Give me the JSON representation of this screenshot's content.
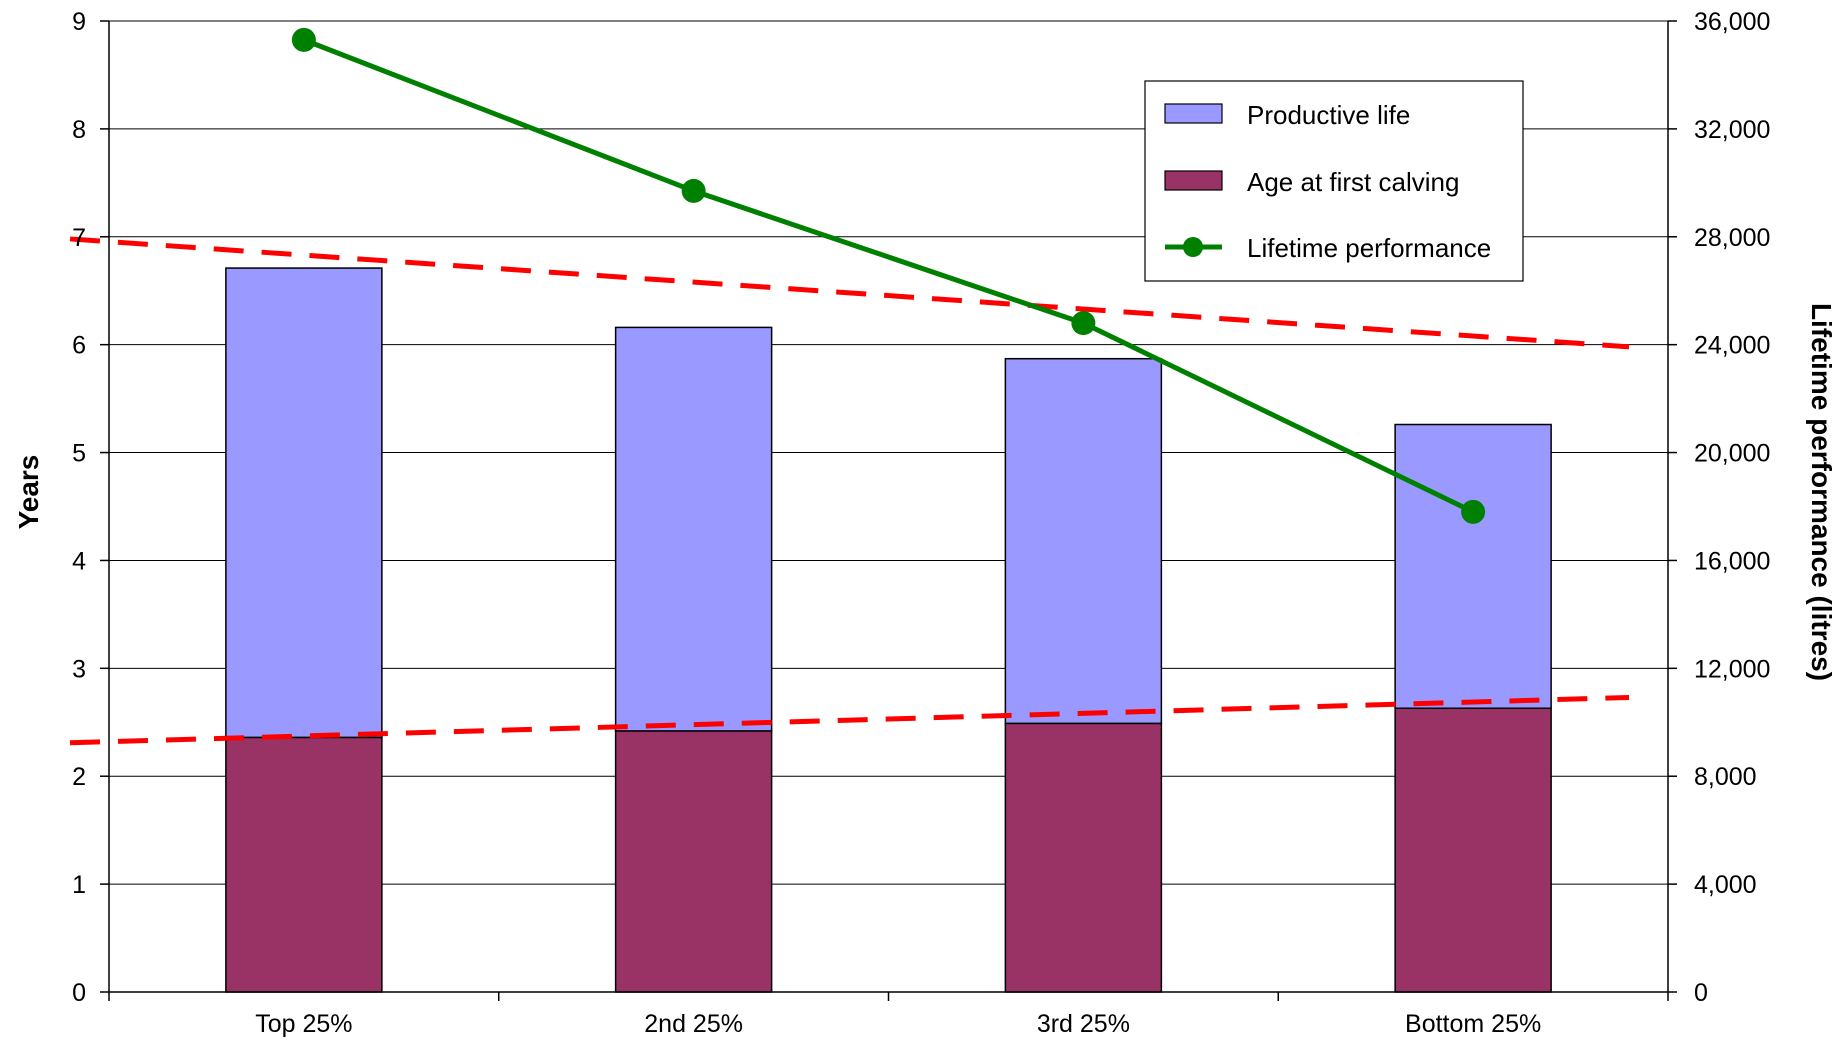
{
  "colors": {
    "productive_life": "#9999ff",
    "age_at_first_calving": "#993366",
    "lifetime_performance": "#008000",
    "trend": "#ff0000",
    "gridline": "#000000"
  },
  "chart_data": {
    "type": "bar",
    "stacked": true,
    "title": "",
    "categories": [
      "Top 25%",
      "2nd 25%",
      "3rd 25%",
      "Bottom 25%"
    ],
    "ylabel": "Years",
    "y2label": "Lifetime performance (litres)",
    "ylim": [
      0,
      9
    ],
    "y2lim": [
      0,
      36000
    ],
    "yticks": [
      "0",
      "1",
      "2",
      "3",
      "4",
      "5",
      "6",
      "7",
      "8",
      "9"
    ],
    "y2ticks": [
      "0",
      "4,000",
      "8,000",
      "12,000",
      "16,000",
      "20,000",
      "24,000",
      "28,000",
      "32,000",
      "36,000"
    ],
    "grid": true,
    "legend_position": "top-right",
    "series": [
      {
        "name": "Age at first calving",
        "type": "bar",
        "axis": "left",
        "values": [
          2.36,
          2.42,
          2.49,
          2.63
        ]
      },
      {
        "name": "Productive life",
        "type": "bar",
        "axis": "left",
        "values": [
          4.35,
          3.74,
          3.38,
          2.63
        ]
      },
      {
        "name": "Lifetime performance",
        "type": "line",
        "axis": "right",
        "values": [
          35300,
          29700,
          24800,
          17800
        ]
      }
    ],
    "trendlines": [
      {
        "of": "Total age",
        "axis": "left",
        "x_range": [
          0.4,
          4.4
        ],
        "y": [
          6.98,
          5.98
        ]
      },
      {
        "of": "Age at first calving",
        "axis": "left",
        "x_range": [
          0.4,
          4.4
        ],
        "y": [
          2.31,
          2.73
        ]
      }
    ],
    "legend": [
      "Productive life",
      "Age at first calving",
      "Lifetime performance"
    ]
  }
}
